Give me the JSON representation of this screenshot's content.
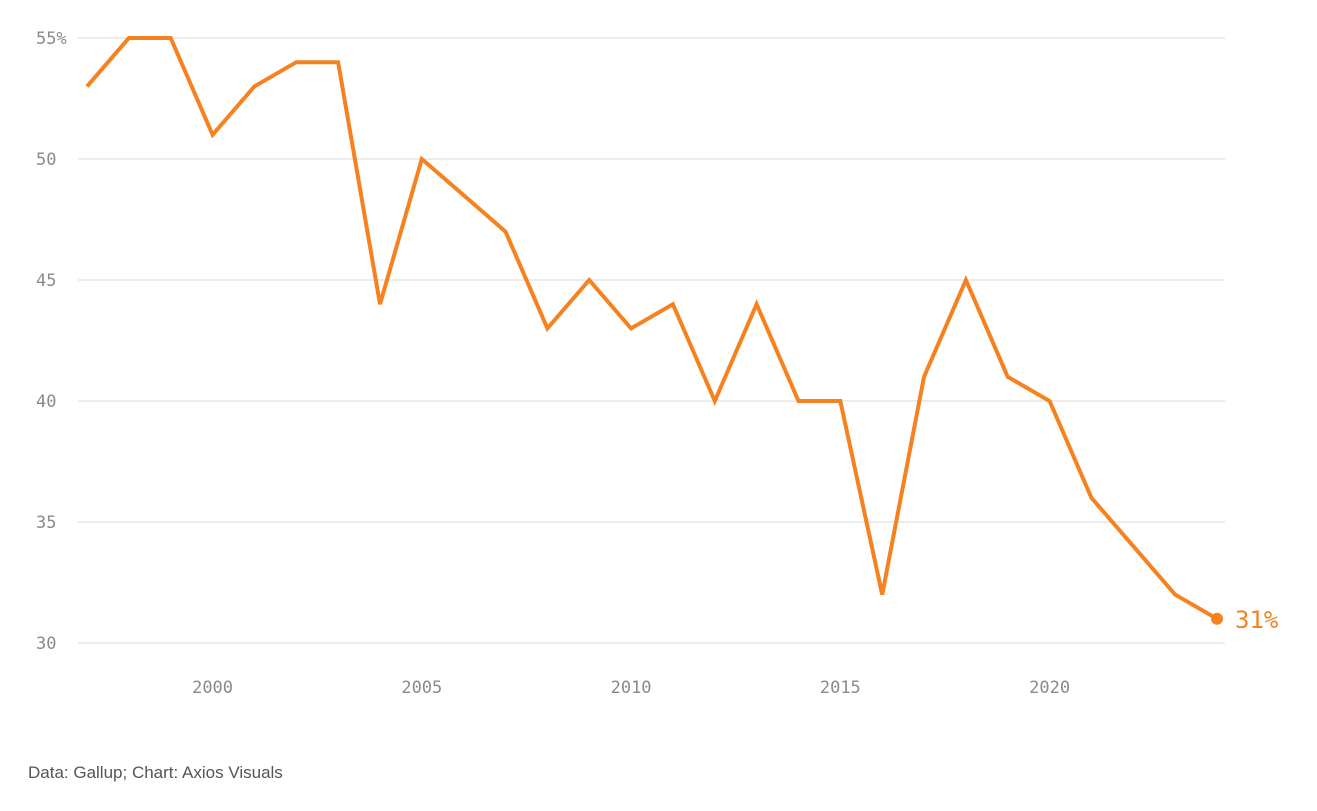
{
  "chart_data": {
    "type": "line",
    "x": [
      1997,
      1998,
      1999,
      2000,
      2001,
      2002,
      2003,
      2004,
      2005,
      2006,
      2007,
      2008,
      2009,
      2010,
      2011,
      2012,
      2013,
      2014,
      2015,
      2016,
      2017,
      2018,
      2019,
      2020,
      2021,
      2022,
      2023,
      2024
    ],
    "series": [
      {
        "values": [
          53,
          55,
          55,
          51,
          53,
          54,
          54,
          44,
          50,
          48.5,
          47,
          43,
          45,
          43,
          44,
          40,
          44,
          40,
          40,
          32,
          41,
          45,
          41,
          40,
          36,
          34,
          32,
          31
        ],
        "color": "#f5821f"
      }
    ],
    "xlim": [
      1997,
      2024
    ],
    "ylim": [
      30,
      55
    ],
    "x_ticks": [
      2000,
      2005,
      2010,
      2015,
      2020
    ],
    "y_ticks": [
      {
        "value": 30,
        "label": "30"
      },
      {
        "value": 35,
        "label": "35"
      },
      {
        "value": 40,
        "label": "40"
      },
      {
        "value": 45,
        "label": "45"
      },
      {
        "value": 50,
        "label": "50"
      },
      {
        "value": 55,
        "label": "55%"
      }
    ],
    "end_label": "31%",
    "grid": "horizontal",
    "grid_color": "#d9d9d9",
    "axis_text_color": "#8a8a8a",
    "title": "",
    "xlabel": "",
    "ylabel": ""
  },
  "source": "Data: Gallup; Chart: Axios Visuals"
}
